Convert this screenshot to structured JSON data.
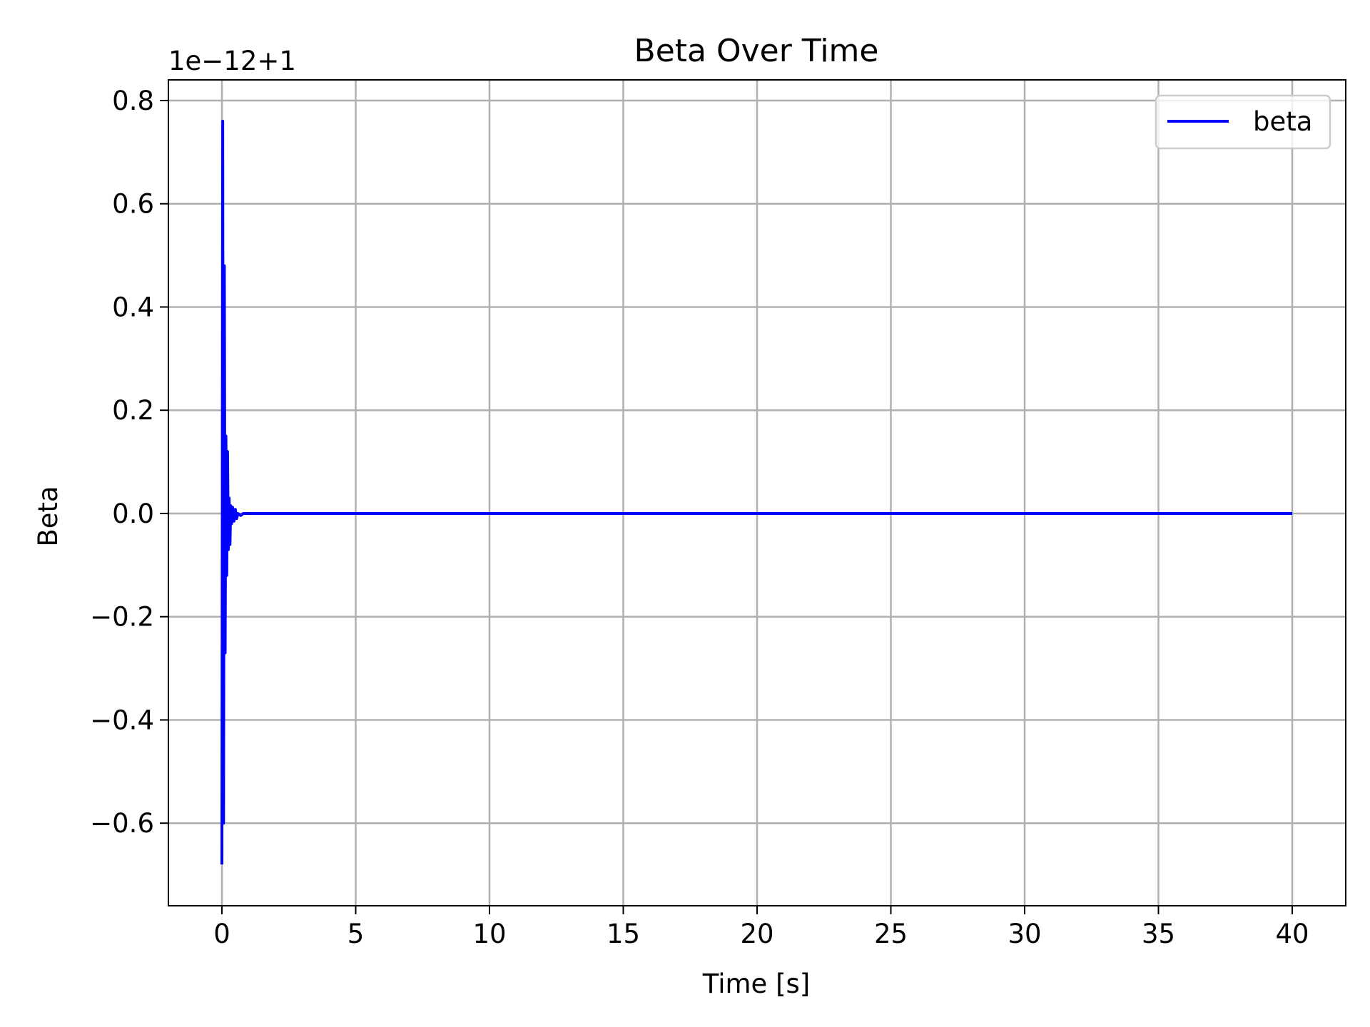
{
  "chart_data": {
    "type": "line",
    "title": "Beta Over Time",
    "xlabel": "Time [s]",
    "ylabel": "Beta",
    "y_offset_text": "1e−12+1",
    "xlim": [
      -2,
      42
    ],
    "ylim": [
      -0.76,
      0.84
    ],
    "xticks": [
      0,
      5,
      10,
      15,
      20,
      25,
      30,
      35,
      40
    ],
    "xtick_labels": [
      "0",
      "5",
      "10",
      "15",
      "20",
      "25",
      "30",
      "35",
      "40"
    ],
    "yticks": [
      -0.6,
      -0.4,
      -0.2,
      0.0,
      0.2,
      0.4,
      0.6,
      0.8
    ],
    "ytick_labels": [
      "−0.6",
      "−0.4",
      "−0.2",
      "0.0",
      "0.2",
      "0.4",
      "0.6",
      "0.8"
    ],
    "grid": true,
    "legend_position": "top-right",
    "series": [
      {
        "name": "beta",
        "color": "#0000ff",
        "x": [
          0,
          0.03,
          0.06,
          0.09,
          0.12,
          0.15,
          0.18,
          0.21,
          0.24,
          0.27,
          0.3,
          0.33,
          0.36,
          0.4,
          0.45,
          0.5,
          0.55,
          0.6,
          0.7,
          0.8,
          1.0,
          2.0,
          5.0,
          10.0,
          20.0,
          30.0,
          40.0
        ],
        "y": [
          -0.68,
          0.76,
          -0.6,
          0.48,
          -0.27,
          0.15,
          -0.12,
          0.12,
          -0.07,
          0.03,
          -0.06,
          0.015,
          -0.02,
          0.012,
          -0.015,
          0.008,
          -0.01,
          0.0,
          -0.004,
          0.0,
          0.0,
          0.0,
          0.0,
          0.0,
          0.0,
          0.0,
          0.0
        ]
      }
    ]
  }
}
